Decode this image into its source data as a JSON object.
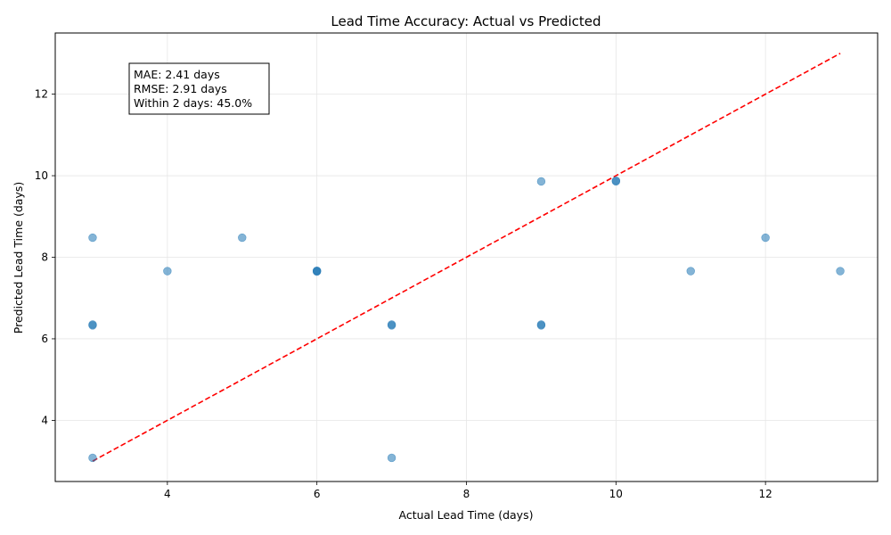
{
  "chart_data": {
    "type": "scatter",
    "title": "Lead Time Accuracy: Actual vs Predicted",
    "xlabel": "Actual Lead Time (days)",
    "ylabel": "Predicted Lead Time (days)",
    "xlim": [
      2.5,
      13.5
    ],
    "ylim": [
      2.5,
      13.5
    ],
    "xticks": [
      4,
      6,
      8,
      10,
      12
    ],
    "yticks": [
      4,
      6,
      8,
      10,
      12
    ],
    "grid": true,
    "point_color": "#1f77b4",
    "reference_line": {
      "x": [
        3,
        13
      ],
      "y": [
        3,
        13
      ],
      "color": "#ff0000",
      "style": "dashed"
    },
    "points": [
      {
        "x": 3,
        "y": 8.48
      },
      {
        "x": 3,
        "y": 6.33
      },
      {
        "x": 3,
        "y": 6.35
      },
      {
        "x": 3,
        "y": 3.08
      },
      {
        "x": 4,
        "y": 7.66
      },
      {
        "x": 5,
        "y": 8.48
      },
      {
        "x": 6,
        "y": 7.66
      },
      {
        "x": 6,
        "y": 7.67
      },
      {
        "x": 7,
        "y": 6.33
      },
      {
        "x": 7,
        "y": 6.35
      },
      {
        "x": 7,
        "y": 3.08
      },
      {
        "x": 9,
        "y": 9.86
      },
      {
        "x": 9,
        "y": 6.33
      },
      {
        "x": 9,
        "y": 6.35
      },
      {
        "x": 10,
        "y": 9.86
      },
      {
        "x": 10,
        "y": 9.88
      },
      {
        "x": 11,
        "y": 7.66
      },
      {
        "x": 12,
        "y": 8.48
      },
      {
        "x": 13,
        "y": 7.66
      },
      {
        "x": 6,
        "y": 7.65
      }
    ],
    "annotations": [
      "MAE: 2.41 days",
      "RMSE: 2.91 days",
      "Within 2 days: 45.0%"
    ]
  }
}
